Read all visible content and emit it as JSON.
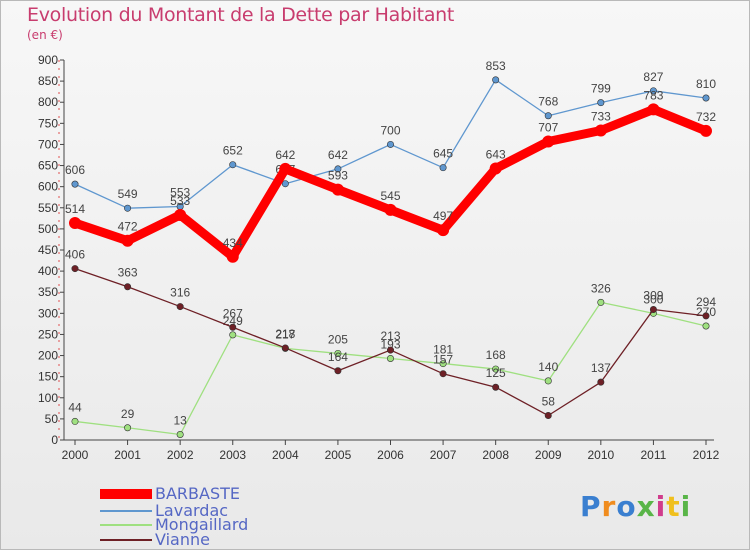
{
  "title": "Evolution du Montant de la Dette par Habitant",
  "unit_label": "(en €)",
  "logo": {
    "text": "Proxiti",
    "colors": [
      "#3a7fd0",
      "#f08c1e",
      "#3a7fd0",
      "#59b548",
      "#d03c8c",
      "#f0c01e",
      "#59b548"
    ]
  },
  "chart_data": {
    "type": "line",
    "title": "Evolution du Montant de la Dette par Habitant",
    "ylabel": "(en €)",
    "x": [
      "2000",
      "2001",
      "2002",
      "2003",
      "2004",
      "2005",
      "2006",
      "2007",
      "2008",
      "2009",
      "2010",
      "2011",
      "2012"
    ],
    "ylim": [
      0,
      900
    ],
    "yticks": [
      0,
      50,
      100,
      150,
      200,
      250,
      300,
      350,
      400,
      450,
      500,
      550,
      600,
      650,
      700,
      750,
      800,
      850,
      900
    ],
    "grid": false,
    "legend": "bottom-left",
    "series": [
      {
        "name": "BARBASTE",
        "color": "#ff0000",
        "values": [
          514,
          472,
          533,
          434,
          642,
          593,
          545,
          497,
          643,
          707,
          733,
          783,
          732
        ]
      },
      {
        "name": "Lavardac",
        "color": "#5f97cf",
        "values": [
          606,
          549,
          553,
          652,
          607,
          642,
          700,
          645,
          853,
          768,
          799,
          827,
          810
        ]
      },
      {
        "name": "Mongaillard",
        "color": "#9fe080",
        "values": [
          44,
          29,
          13,
          249,
          217,
          205,
          193,
          181,
          168,
          140,
          326,
          300,
          270
        ]
      },
      {
        "name": "Vianne",
        "color": "#6e2026",
        "values": [
          406,
          363,
          316,
          267,
          218,
          164,
          213,
          157,
          125,
          58,
          137,
          309,
          294
        ]
      }
    ]
  }
}
